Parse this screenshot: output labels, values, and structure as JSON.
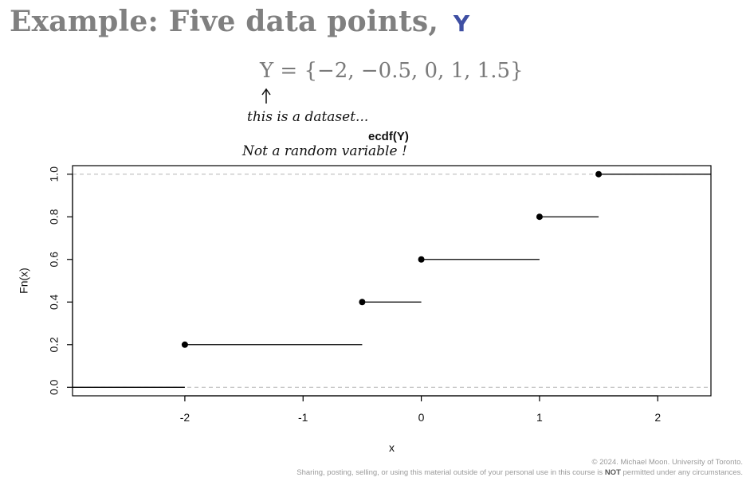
{
  "slide": {
    "title_text": "Example: Five data points,",
    "title_var": "Y",
    "equation": "Y = {−2, −0.5, 0, 1, 1.5}",
    "annotation_line1": "this is a dataset...",
    "annotation_line2": "Not a random variable !",
    "arrow_glyph": "↑"
  },
  "footer": {
    "line1": "© 2024. Michael Moon. University of Toronto.",
    "line2_before": "Sharing, posting, selling, or using this material outside of your personal use in this course is ",
    "line2_bold": "NOT",
    "line2_after": " permitted under any circumstances."
  },
  "chart_data": {
    "type": "line",
    "subtype": "step",
    "title": "ecdf(Y)",
    "xlabel": "x",
    "ylabel": "Fn(x)",
    "xlim": [
      -2.95,
      2.45
    ],
    "ylim": [
      -0.04,
      1.04
    ],
    "xticks": [
      -2,
      -1,
      0,
      1,
      2
    ],
    "xtick_labels": [
      "-2",
      "-1",
      "0",
      "1",
      "2"
    ],
    "yticks": [
      0.0,
      0.2,
      0.4,
      0.6,
      0.8,
      1.0
    ],
    "ytick_labels": [
      "0.0",
      "0.2",
      "0.4",
      "0.6",
      "0.8",
      "1.0"
    ],
    "reference_lines_y": [
      0,
      1
    ],
    "points": [
      {
        "x": -2.0,
        "y": 0.2
      },
      {
        "x": -0.5,
        "y": 0.4
      },
      {
        "x": 0.0,
        "y": 0.6
      },
      {
        "x": 1.0,
        "y": 0.8
      },
      {
        "x": 1.5,
        "y": 1.0
      }
    ],
    "colors": {
      "line": "#000000",
      "reference": "#bdbdbd",
      "axis": "#000000"
    }
  }
}
